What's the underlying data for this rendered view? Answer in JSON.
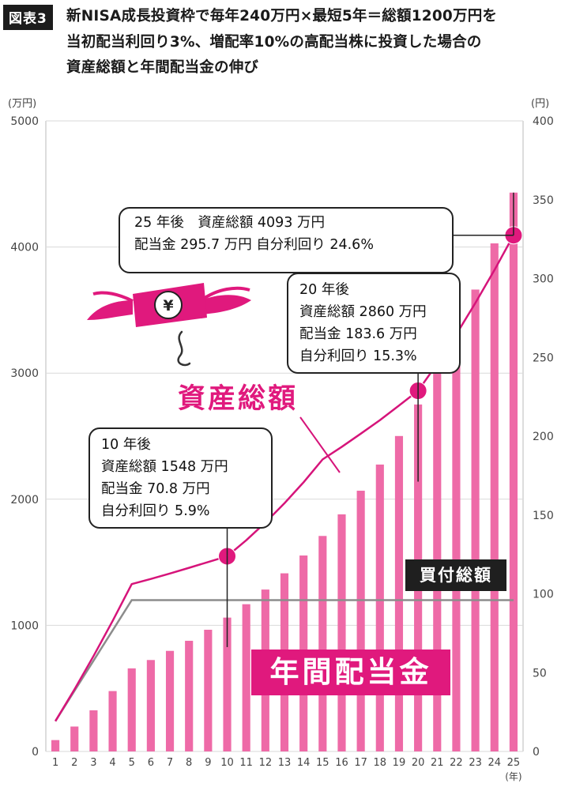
{
  "header": {
    "tag": "図表3",
    "line1": "新NISA成長投資枠で毎年240万円×最短5年＝総額1200万円を",
    "line2": "当初配当利回り3%、増配率10%の高配当株に投資した場合の",
    "line3": "資産総額と年間配当金の伸び"
  },
  "chart_data": {
    "type": "bar",
    "x": [
      1,
      2,
      3,
      4,
      5,
      6,
      7,
      8,
      9,
      10,
      11,
      12,
      13,
      14,
      15,
      16,
      17,
      18,
      19,
      20,
      21,
      22,
      23,
      24,
      25
    ],
    "xlabel": "(年)",
    "series": [
      {
        "name": "年間配当金",
        "type": "bar",
        "axis": "right",
        "unit": "万円",
        "values": [
          7.2,
          15.8,
          26.1,
          38.3,
          52.7,
          58,
          63.8,
          70.2,
          77.2,
          84.9,
          93.4,
          102.7,
          113,
          124.3,
          136.7,
          150.4,
          165.4,
          182,
          200.1,
          220.1,
          242.2,
          266.4,
          293,
          322.3,
          354.5
        ]
      },
      {
        "name": "資産総額",
        "type": "line",
        "axis": "left",
        "unit": "万円",
        "values": [
          240,
          492,
          757,
          1035,
          1327,
          1368,
          1411,
          1456,
          1502,
          1548,
          1675,
          1815,
          1968,
          2134,
          2316,
          2415,
          2520,
          2627,
          2743,
          2860,
          3074,
          3307,
          3556,
          3817,
          4093
        ]
      },
      {
        "name": "買付総額",
        "type": "line",
        "axis": "left",
        "unit": "万円",
        "values": [
          240,
          480,
          720,
          960,
          1200,
          1200,
          1200,
          1200,
          1200,
          1200,
          1200,
          1200,
          1200,
          1200,
          1200,
          1200,
          1200,
          1200,
          1200,
          1200,
          1200,
          1200,
          1200,
          1200,
          1200
        ]
      }
    ],
    "yaxis_left": {
      "label": "(万円)",
      "ticks": [
        0,
        1000,
        2000,
        3000,
        4000,
        5000
      ],
      "ylim": [
        0,
        5000
      ]
    },
    "yaxis_right": {
      "label": "(円)",
      "ticks": [
        0,
        50,
        100,
        150,
        200,
        250,
        300,
        350,
        400
      ],
      "ylim": [
        0,
        400
      ]
    },
    "grid": "horizontal",
    "colors": {
      "bars": "#ee6aa7",
      "asset_line": "#d6147a",
      "buy_line": "#8c8c8c",
      "accent": "#e0197d"
    },
    "annotations": {
      "y25": {
        "l1": "25 年後　資産総額 4093 万円",
        "l2": "配当金 295.7 万円 自分利回り 24.6%"
      },
      "y20": {
        "l1": "20 年後",
        "l2": "資産総額 2860 万円",
        "l3": "配当金 183.6 万円",
        "l4": "自分利回り 15.3%"
      },
      "y10": {
        "l1": "10 年後",
        "l2": "資産総額 1548 万円",
        "l3": "配当金 70.8 万円",
        "l4": "自分利回り 5.9%"
      }
    },
    "labels": {
      "assets": "資産総額",
      "dividend": "年間配当金",
      "buy_total": "買付総額"
    },
    "icon": "flying-yen-money-icon"
  }
}
